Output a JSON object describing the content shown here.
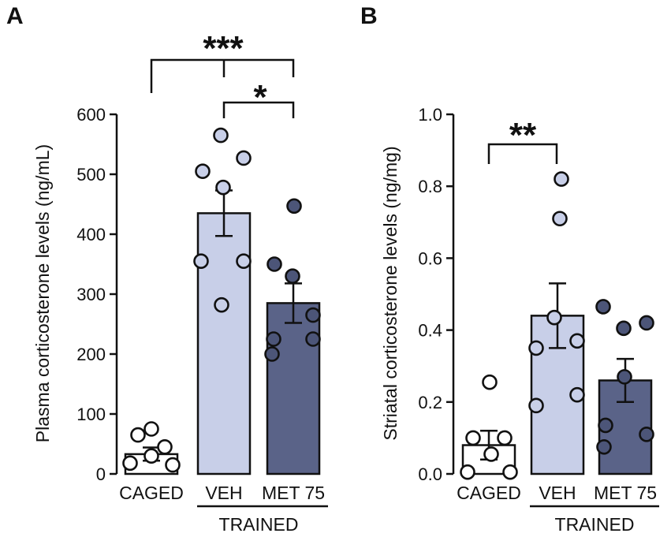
{
  "chart_data": [
    {
      "panel_letter": "A",
      "type": "bar",
      "ylabel": "Plasma corticosterone levels (ng/mL)",
      "ylim": [
        0,
        600
      ],
      "yticks": [
        "0",
        "100",
        "200",
        "300",
        "400",
        "500",
        "600"
      ],
      "ytick_values": [
        0,
        100,
        200,
        300,
        400,
        500,
        600
      ],
      "categories": [
        "CAGED",
        "VEH",
        "MET 75"
      ],
      "group_label": "TRAINED",
      "means": [
        33,
        435,
        285
      ],
      "sem": [
        11,
        38,
        33
      ],
      "points": [
        [
          75,
          65,
          45,
          30,
          18,
          15
        ],
        [
          565,
          527,
          505,
          478,
          355,
          355,
          282
        ],
        [
          447,
          350,
          330,
          265,
          225,
          225,
          200
        ]
      ],
      "significance": [
        {
          "groups": [
            "CAGED",
            "TRAINED"
          ],
          "label": "***"
        },
        {
          "groups": [
            "VEH",
            "MET 75"
          ],
          "label": "*"
        }
      ],
      "colors": [
        "#ffffff",
        "#c8cfe8",
        "#5a6388"
      ],
      "dot_colors": [
        "#ffffff",
        "#c8cfe8",
        "#4c5578"
      ]
    },
    {
      "panel_letter": "B",
      "type": "bar",
      "ylabel": "Striatal corticosterone levels (ng/mg)",
      "ylim": [
        0,
        1.0
      ],
      "yticks": [
        "0.0",
        "0.2",
        "0.4",
        "0.6",
        "0.8",
        "1.0"
      ],
      "ytick_values": [
        0,
        0.2,
        0.4,
        0.6,
        0.8,
        1.0
      ],
      "categories": [
        "CAGED",
        "VEH",
        "MET 75"
      ],
      "group_label": "TRAINED",
      "means": [
        0.08,
        0.44,
        0.26
      ],
      "sem": [
        0.04,
        0.09,
        0.06
      ],
      "points": [
        [
          0.255,
          0.1,
          0.1,
          0.055,
          0.005,
          0.005
        ],
        [
          0.82,
          0.71,
          0.435,
          0.37,
          0.35,
          0.22,
          0.19
        ],
        [
          0.465,
          0.42,
          0.405,
          0.27,
          0.135,
          0.11,
          0.075
        ]
      ],
      "significance": [
        {
          "groups": [
            "CAGED",
            "VEH"
          ],
          "label": "**"
        }
      ],
      "colors": [
        "#ffffff",
        "#c8cfe8",
        "#5a6388"
      ],
      "dot_colors": [
        "#ffffff",
        "#c8cfe8",
        "#4c5578"
      ]
    }
  ]
}
